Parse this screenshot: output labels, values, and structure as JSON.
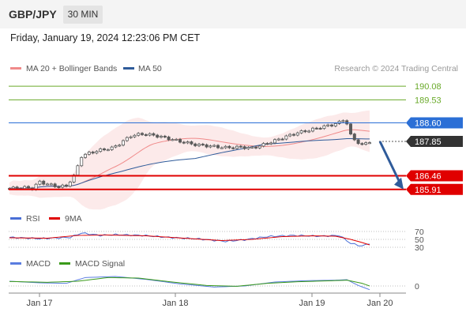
{
  "header": {
    "pair": "GBP/JPY",
    "timeframe": "30 MIN"
  },
  "timestamp": "Friday, January 19, 2024 12:23:06 PM CET",
  "credit": "Research © 2024 Trading Central",
  "colors": {
    "candle": "#5a5a5a",
    "bollinger": "#f08a8a",
    "ma50": "#2f5b9a",
    "blue_level": "#2b6fd6",
    "red_level": "#e00000",
    "green_level": "#6aaa2a",
    "arrow": "#2f5b9a",
    "rsi": "#4a6fd6",
    "rsi_ma": "#e00000",
    "macd": "#5a7de0",
    "macd_signal": "#3a9a1a"
  },
  "chart_data": [
    {
      "type": "line",
      "panel": "price",
      "legend": [
        "MA 20 + Bollinger Bands",
        "MA 50"
      ],
      "x_ticks": [
        "Jan 17",
        "Jan 18",
        "Jan 19",
        "Jan 20"
      ],
      "ylim": [
        185.2,
        190.5
      ],
      "levels": [
        {
          "value": 190.08,
          "label": "190.08",
          "kind": "resistance"
        },
        {
          "value": 189.53,
          "label": "189.53",
          "kind": "resistance"
        },
        {
          "value": 188.6,
          "label": "188.60",
          "kind": "pivot"
        },
        {
          "value": 187.85,
          "label": "187.85",
          "kind": "last"
        },
        {
          "value": 186.46,
          "label": "186.46",
          "kind": "support"
        },
        {
          "value": 185.91,
          "label": "185.91",
          "kind": "support"
        }
      ],
      "close_knots": [
        [
          0,
          185.95
        ],
        [
          4,
          185.98
        ],
        [
          6,
          185.95
        ],
        [
          8,
          186.22
        ],
        [
          10,
          186.12
        ],
        [
          13,
          186.02
        ],
        [
          15,
          186.05
        ],
        [
          17,
          186.45
        ],
        [
          19,
          187.25
        ],
        [
          21,
          187.38
        ],
        [
          24,
          187.5
        ],
        [
          27,
          187.58
        ],
        [
          29,
          187.75
        ],
        [
          32,
          188.08
        ],
        [
          35,
          188.15
        ],
        [
          38,
          188.1
        ],
        [
          41,
          188.0
        ],
        [
          45,
          187.85
        ],
        [
          49,
          187.72
        ],
        [
          53,
          187.66
        ],
        [
          57,
          187.6
        ],
        [
          61,
          187.62
        ],
        [
          64,
          187.58
        ],
        [
          67,
          187.72
        ],
        [
          70,
          187.88
        ],
        [
          73,
          188.05
        ],
        [
          76,
          188.2
        ],
        [
          79,
          188.3
        ],
        [
          82,
          188.42
        ],
        [
          85,
          188.52
        ],
        [
          87,
          188.62
        ],
        [
          88,
          188.72
        ],
        [
          89,
          188.58
        ],
        [
          90,
          188.1
        ],
        [
          91,
          187.92
        ],
        [
          93,
          187.7
        ],
        [
          95,
          187.85
        ]
      ],
      "forecast": {
        "from": 187.85,
        "to": 185.91
      }
    },
    {
      "type": "line",
      "panel": "rsi",
      "legend": [
        "RSI",
        "9MA"
      ],
      "ylim": [
        20,
        80
      ],
      "levels": [
        70,
        50,
        30
      ],
      "rsi_knots": [
        [
          0,
          55
        ],
        [
          8,
          52
        ],
        [
          16,
          55
        ],
        [
          19,
          66
        ],
        [
          24,
          60
        ],
        [
          28,
          62
        ],
        [
          35,
          60
        ],
        [
          42,
          55
        ],
        [
          50,
          51
        ],
        [
          57,
          45
        ],
        [
          62,
          49
        ],
        [
          68,
          57
        ],
        [
          75,
          60
        ],
        [
          82,
          58
        ],
        [
          87,
          60
        ],
        [
          90,
          40
        ],
        [
          93,
          33
        ],
        [
          95,
          40
        ]
      ],
      "ma_knots": [
        [
          0,
          54
        ],
        [
          10,
          53
        ],
        [
          18,
          60
        ],
        [
          26,
          61
        ],
        [
          36,
          59
        ],
        [
          46,
          53
        ],
        [
          56,
          47
        ],
        [
          64,
          50
        ],
        [
          72,
          57
        ],
        [
          80,
          59
        ],
        [
          86,
          58
        ],
        [
          90,
          50
        ],
        [
          93,
          42
        ],
        [
          95,
          36
        ]
      ]
    },
    {
      "type": "line",
      "panel": "macd",
      "legend": [
        "MACD",
        "MACD Signal"
      ],
      "levels": [
        0
      ],
      "ylim": [
        -0.3,
        0.6
      ],
      "macd_knots": [
        [
          0,
          0.18
        ],
        [
          8,
          0.12
        ],
        [
          15,
          0.1
        ],
        [
          20,
          0.32
        ],
        [
          28,
          0.36
        ],
        [
          36,
          0.25
        ],
        [
          45,
          0.08
        ],
        [
          54,
          -0.04
        ],
        [
          62,
          0.0
        ],
        [
          70,
          0.15
        ],
        [
          78,
          0.2
        ],
        [
          86,
          0.22
        ],
        [
          89,
          0.24
        ],
        [
          92,
          0.02
        ],
        [
          95,
          -0.14
        ]
      ],
      "signal_knots": [
        [
          0,
          0.17
        ],
        [
          10,
          0.14
        ],
        [
          18,
          0.18
        ],
        [
          26,
          0.32
        ],
        [
          34,
          0.3
        ],
        [
          43,
          0.15
        ],
        [
          52,
          0.02
        ],
        [
          60,
          -0.01
        ],
        [
          68,
          0.1
        ],
        [
          76,
          0.16
        ],
        [
          85,
          0.2
        ],
        [
          89,
          0.22
        ],
        [
          93,
          0.1
        ],
        [
          95,
          0.0
        ]
      ]
    }
  ]
}
